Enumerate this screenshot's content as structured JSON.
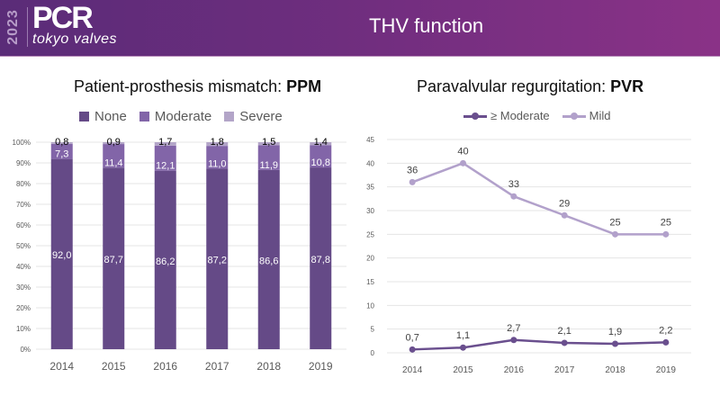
{
  "header": {
    "logo_year": "2023",
    "logo_brand": "PCR",
    "logo_subtitle": "tokyo valves",
    "title": "THV function"
  },
  "colors": {
    "none": "#654a87",
    "moderate": "#8265a8",
    "severe": "#b3a5c8",
    "moderate_plus_line": "#6a4f8e",
    "mild_line": "#b2a1cb",
    "grid": "#e4e4e4",
    "axis_text": "#595959"
  },
  "chart_data": [
    {
      "type": "bar",
      "stacked": true,
      "title_prefix": "Patient-prosthesis mismatch: ",
      "title_bold": "PPM",
      "categories": [
        "2014",
        "2015",
        "2016",
        "2017",
        "2018",
        "2019"
      ],
      "series": [
        {
          "name": "None",
          "values": [
            92.0,
            87.7,
            86.2,
            87.2,
            86.6,
            87.8
          ],
          "labels": [
            "92,0",
            "87,7",
            "86,2",
            "87,2",
            "86,6",
            "87,8"
          ]
        },
        {
          "name": "Moderate",
          "values": [
            7.3,
            11.4,
            12.1,
            11.0,
            11.9,
            10.8
          ],
          "labels": [
            "7,3",
            "11,4",
            "12,1",
            "11,0",
            "11,9",
            "10,8"
          ]
        },
        {
          "name": "Severe",
          "values": [
            0.8,
            0.9,
            1.7,
            1.8,
            1.5,
            1.4
          ],
          "labels": [
            "0,8",
            "0,9",
            "1,7",
            "1,8",
            "1,5",
            "1,4"
          ]
        }
      ],
      "yticks": [
        "0%",
        "10%",
        "20%",
        "30%",
        "40%",
        "50%",
        "60%",
        "70%",
        "80%",
        "90%",
        "100%"
      ],
      "ylim": [
        0,
        100
      ],
      "grid": true,
      "legend_position": "top"
    },
    {
      "type": "line",
      "title_prefix": "Paravalvular regurgitation: ",
      "title_bold": "PVR",
      "categories": [
        "2014",
        "2015",
        "2016",
        "2017",
        "2018",
        "2019"
      ],
      "series": [
        {
          "name": "≥ Moderate",
          "values": [
            0.7,
            1.1,
            2.7,
            2.1,
            1.9,
            2.2
          ],
          "labels": [
            "0,7",
            "1,1",
            "2,7",
            "2,1",
            "1,9",
            "2,2"
          ]
        },
        {
          "name": "Mild",
          "values": [
            36,
            40,
            33,
            29,
            25,
            25
          ],
          "labels": [
            "36",
            "40",
            "33",
            "29",
            "25",
            "25"
          ]
        }
      ],
      "yticks": [
        "0",
        "5",
        "10",
        "15",
        "20",
        "25",
        "30",
        "35",
        "40",
        "45"
      ],
      "ylim": [
        0,
        45
      ],
      "grid": true,
      "legend_position": "top"
    }
  ]
}
